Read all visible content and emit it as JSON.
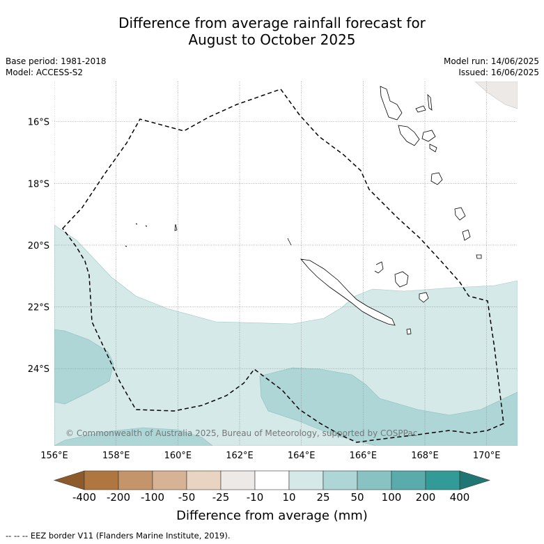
{
  "title_line1": "Difference from average rainfall forecast for",
  "title_line2": "August to October 2025",
  "base_period": "Base period: 1981-2018",
  "model": "Model: ACCESS-S2",
  "model_run": "Model run: 14/06/2025",
  "issued": "Issued: 16/06/2025",
  "copyright": "© Commonwealth of Australia 2025, Bureau of Meteorology, supported by COSPPac",
  "map": {
    "x_ticks": [
      "156°E",
      "158°E",
      "160°E",
      "162°E",
      "164°E",
      "166°E",
      "168°E",
      "170°E"
    ],
    "y_ticks": [
      "16°S",
      "18°S",
      "20°S",
      "22°S",
      "24°S"
    ],
    "lon_range": [
      156,
      171
    ],
    "lat_range": [
      -14.7,
      -26.5
    ],
    "grid": true
  },
  "colorbar": {
    "labels": [
      "-400",
      "-200",
      "-100",
      "-50",
      "-25",
      "-10",
      "10",
      "25",
      "50",
      "100",
      "200",
      "400"
    ],
    "colors": [
      "#8c5a2b",
      "#b07640",
      "#c4956a",
      "#d5b394",
      "#e8d4c0",
      "#ece9e6",
      "#ffffff",
      "#d4e9e8",
      "#afd6d6",
      "#88c2c3",
      "#5aabac",
      "#339b97",
      "#1f7672"
    ],
    "title": "Difference from average (mm)"
  },
  "legend_text": "--  --  -- EEZ border V11 (Flanders Marine Institute, 2019)."
}
